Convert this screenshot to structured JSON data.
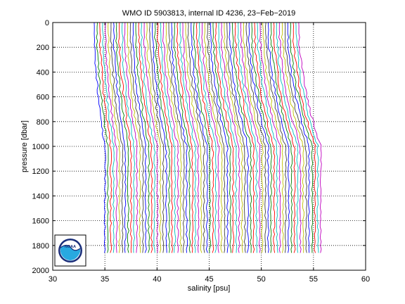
{
  "chart_data": {
    "type": "line",
    "title": "WMO ID 5903813, internal ID 4236, 23−Feb−2019",
    "xlabel": "salinity [psu]",
    "ylabel": "pressure [dbar]",
    "xlim": [
      30,
      60
    ],
    "ylim": [
      2000,
      0
    ],
    "y_reversed": true,
    "grid": true,
    "grid_style": "dotted",
    "x_ticks": [
      30,
      35,
      40,
      45,
      50,
      55,
      60
    ],
    "y_ticks": [
      0,
      200,
      400,
      600,
      800,
      1000,
      1200,
      1400,
      1600,
      1800,
      2000
    ],
    "x_tick_labels": [
      "30",
      "35",
      "40",
      "45",
      "50",
      "55",
      "60"
    ],
    "y_tick_labels": [
      "0",
      "200",
      "400",
      "600",
      "800",
      "1000",
      "1200",
      "1400",
      "1600",
      "1800",
      "2000"
    ],
    "series_colors": [
      "#0000ff",
      "#008000",
      "#ff0000",
      "#00bfbf",
      "#bf00bf",
      "#bfbf00",
      "#404040"
    ],
    "offset_profiles": {
      "count": 75,
      "first_surface_salinity": 34.0,
      "surface_step": 0.26,
      "last_surface_salinity": 53.6,
      "first_deep_salinity": 35.0,
      "last_deep_salinity": 55.7,
      "max_pressure": 1870
    },
    "logo": {
      "text": "NOAA",
      "colors": {
        "dark": "#1a2e7a",
        "light": "#28a9e0"
      }
    }
  }
}
